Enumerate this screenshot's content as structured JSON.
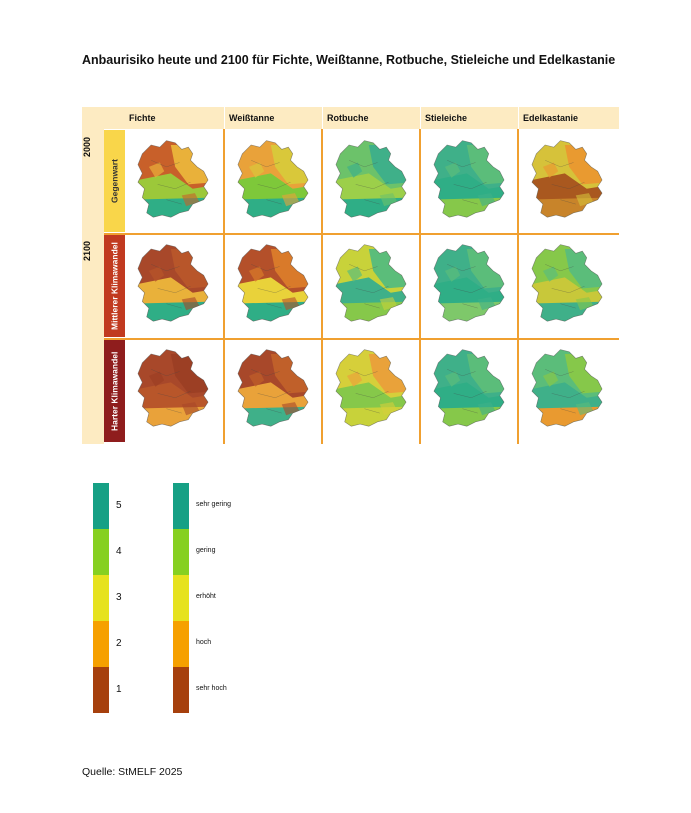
{
  "title": "Anbaurisiko heute und 2100 für Fichte, Weißtanne, Rotbuche, Stieleiche und Edelkastanie",
  "columns": [
    "Fichte",
    "Weißtanne",
    "Rotbuche",
    "Stieleiche",
    "Edelkastanie"
  ],
  "years": [
    "2000",
    "2100"
  ],
  "scenarios": [
    "Gegenwart",
    "Mittlerer Klimawandel",
    "Harter Klimawandel"
  ],
  "scenario_colors": [
    "#f9d64a",
    "#c13a20",
    "#8f1d1d"
  ],
  "legend": {
    "levels": [
      {
        "value": "5",
        "label": "sehr gering",
        "color": "#16a085"
      },
      {
        "value": "4",
        "label": "gering",
        "color": "#86d021"
      },
      {
        "value": "3",
        "label": "erhöht",
        "color": "#e6e21e"
      },
      {
        "value": "2",
        "label": "hoch",
        "color": "#f6a000"
      },
      {
        "value": "1",
        "label": "sehr hoch",
        "color": "#a6400d"
      }
    ]
  },
  "maps": [
    {
      "tree": "Fichte",
      "scenario": "Gegenwart",
      "scheme": [
        "#c8602a",
        "#e9b13a",
        "#9cc83a",
        "#2fae86"
      ]
    },
    {
      "tree": "Weißtanne",
      "scenario": "Gegenwart",
      "scheme": [
        "#e9a23a",
        "#d9c83a",
        "#7ec83a",
        "#2fae86"
      ]
    },
    {
      "tree": "Rotbuche",
      "scenario": "Gegenwart",
      "scheme": [
        "#6cc26a",
        "#3fb089",
        "#9ccf4a",
        "#2fae86"
      ]
    },
    {
      "tree": "Stieleiche",
      "scenario": "Gegenwart",
      "scheme": [
        "#3fb089",
        "#5bbd7a",
        "#2fae86",
        "#86c84a"
      ]
    },
    {
      "tree": "Edelkastanie",
      "scenario": "Gegenwart",
      "scheme": [
        "#d6c23a",
        "#e99a30",
        "#a9581f",
        "#c8842a"
      ]
    },
    {
      "tree": "Fichte",
      "scenario": "Mittlerer Klimawandel",
      "scheme": [
        "#a8482a",
        "#b8562a",
        "#e9b13a",
        "#2fae86"
      ]
    },
    {
      "tree": "Weißtanne",
      "scenario": "Mittlerer Klimawandel",
      "scheme": [
        "#b4502a",
        "#d97a2a",
        "#e9d23a",
        "#2fae86"
      ]
    },
    {
      "tree": "Rotbuche",
      "scenario": "Mittlerer Klimawandel",
      "scheme": [
        "#c8d23a",
        "#5bbd7a",
        "#3fb089",
        "#86c84a"
      ]
    },
    {
      "tree": "Stieleiche",
      "scenario": "Mittlerer Klimawandel",
      "scheme": [
        "#3fb089",
        "#5bbd7a",
        "#2fae86",
        "#7ec86a"
      ]
    },
    {
      "tree": "Edelkastanie",
      "scenario": "Mittlerer Klimawandel",
      "scheme": [
        "#86c84a",
        "#5bbd7a",
        "#c8c83a",
        "#3fb089"
      ]
    },
    {
      "tree": "Fichte",
      "scenario": "Harter Klimawandel",
      "scheme": [
        "#a8482a",
        "#9c3f24",
        "#b8562a",
        "#e9a23a"
      ]
    },
    {
      "tree": "Weißtanne",
      "scenario": "Harter Klimawandel",
      "scheme": [
        "#a8482a",
        "#c0602a",
        "#e9a23a",
        "#3fb089"
      ]
    },
    {
      "tree": "Rotbuche",
      "scenario": "Harter Klimawandel",
      "scheme": [
        "#d6cf3a",
        "#e9a23a",
        "#86c84a",
        "#c8d23a"
      ]
    },
    {
      "tree": "Stieleiche",
      "scenario": "Harter Klimawandel",
      "scheme": [
        "#3fb089",
        "#5bbd7a",
        "#2fae86",
        "#86c84a"
      ]
    },
    {
      "tree": "Edelkastanie",
      "scenario": "Harter Klimawandel",
      "scheme": [
        "#5bbd7a",
        "#86c84a",
        "#3fb089",
        "#e99a30"
      ]
    }
  ],
  "source": "Quelle: StMELF 2025"
}
